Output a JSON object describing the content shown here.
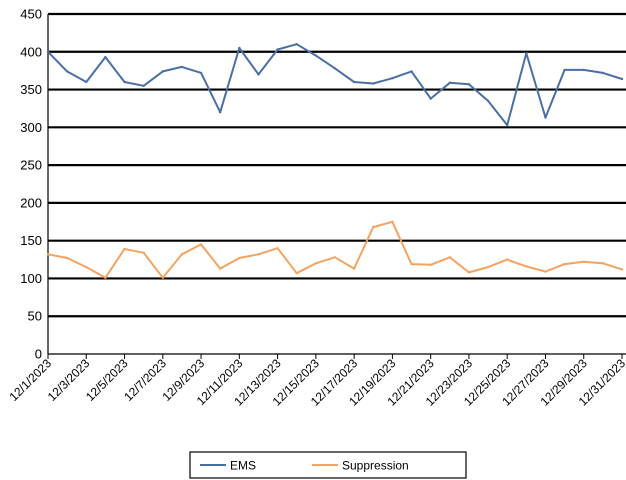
{
  "chart_data": {
    "type": "line",
    "title": "",
    "xlabel": "",
    "ylabel": "",
    "ylim": [
      0,
      450
    ],
    "yticks": [
      0,
      50,
      100,
      150,
      200,
      250,
      300,
      350,
      400,
      450
    ],
    "grid": "horizontal",
    "legend_position": "bottom",
    "x": [
      "12/1/2023",
      "12/2/2023",
      "12/3/2023",
      "12/4/2023",
      "12/5/2023",
      "12/6/2023",
      "12/7/2023",
      "12/8/2023",
      "12/9/2023",
      "12/10/2023",
      "12/11/2023",
      "12/12/2023",
      "12/13/2023",
      "12/14/2023",
      "12/15/2023",
      "12/16/2023",
      "12/17/2023",
      "12/18/2023",
      "12/19/2023",
      "12/20/2023",
      "12/21/2023",
      "12/22/2023",
      "12/23/2023",
      "12/24/2023",
      "12/25/2023",
      "12/26/2023",
      "12/27/2023",
      "12/28/2023",
      "12/29/2023",
      "12/30/2023",
      "12/31/2023"
    ],
    "tick_labels": [
      "12/1/2023",
      "12/3/2023",
      "12/5/2023",
      "12/7/2023",
      "12/9/2023",
      "12/11/2023",
      "12/13/2023",
      "12/15/2023",
      "12/17/2023",
      "12/19/2023",
      "12/21/2023",
      "12/23/2023",
      "12/25/2023",
      "12/27/2023",
      "12/29/2023",
      "12/31/2023"
    ],
    "series": [
      {
        "name": "EMS",
        "color": "#4a6fa5",
        "values": [
          400,
          374,
          360,
          393,
          360,
          355,
          374,
          380,
          372,
          320,
          405,
          370,
          403,
          410,
          395,
          378,
          360,
          358,
          365,
          374,
          338,
          359,
          357,
          335,
          303,
          398,
          313,
          376,
          376,
          372,
          364
        ]
      },
      {
        "name": "Suppression",
        "color": "#f4a460",
        "values": [
          132,
          127,
          115,
          101,
          139,
          134,
          101,
          132,
          145,
          113,
          127,
          132,
          140,
          107,
          120,
          128,
          113,
          168,
          175,
          119,
          118,
          128,
          108,
          115,
          125,
          116,
          109,
          119,
          122,
          120,
          112
        ]
      }
    ]
  }
}
